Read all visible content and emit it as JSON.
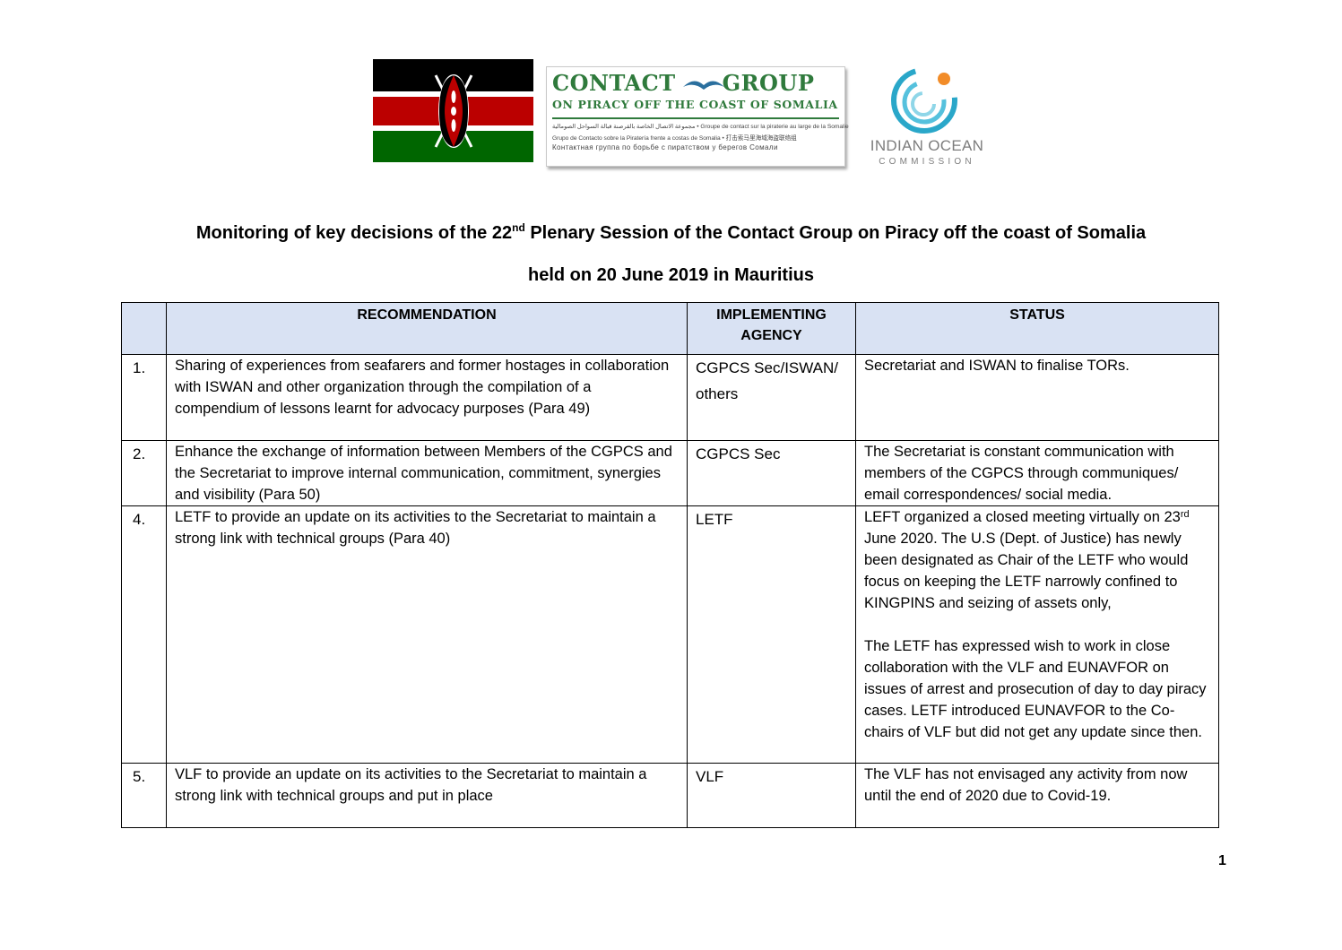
{
  "logos": {
    "contact_group_title_left": "CONTACT",
    "contact_group_title_right": "GROUP",
    "contact_group_subtitle": "ON PIRACY OFF THE COAST OF SOMALIA",
    "contact_group_multilingual": [
      "مجموعة الاتصال الخاصة بالقرصنة قبالة السواحل الصومالية • Groupe de contact sur la piraterie au large de la Somalie",
      "Grupo de Contacto sobre la Piratería frente a costas de Somalia • 打击索马里海域海盗联络组",
      "Контактная группа по борьбе с пиратством у берегов Сомали"
    ],
    "ioc_name": "INDIAN OCEAN",
    "ioc_sub": "COMMISSION"
  },
  "heading": {
    "line1_before": "Monitoring of key decisions of the 22",
    "line1_sup": "nd",
    "line1_after": " Plenary Session of the Contact Group on Piracy off the coast of Somalia",
    "line2": "held on 20 June 2019 in Mauritius"
  },
  "table": {
    "headers": {
      "num": "",
      "recommendation": "RECOMMENDATION",
      "agency_line1": "IMPLEMENTING",
      "agency_line2": "AGENCY",
      "status": "STATUS"
    },
    "rows": [
      {
        "num": "1.",
        "recommendation": "Sharing of experiences from seafarers and former hostages in collaboration with ISWAN and other organization through the compilation of a compendium of lessons learnt for advocacy purposes (Para 49)",
        "agency": "CGPCS Sec/ISWAN/ others",
        "status": "Secretariat and ISWAN to finalise TORs."
      },
      {
        "num": "2.",
        "recommendation": "Enhance the exchange of information between Members of the CGPCS and the Secretariat to improve internal communication, commitment, synergies and visibility (Para 50)",
        "agency": "CGPCS Sec",
        "status": "The Secretariat is constant communication with members of the CGPCS through communiques/ email correspondences/ social media."
      },
      {
        "num": "4.",
        "recommendation": "LETF to provide an update on its activities to the Secretariat to maintain a strong link with technical groups (Para 40)",
        "agency": "LETF",
        "status_p1_a": "LEFT organized a closed meeting virtually on 23",
        "status_p1_sup": "rd",
        "status_p1_b": " June 2020.  The U.S (Dept. of Justice) has newly been designated as Chair of the LETF who would focus on keeping the LETF narrowly confined to KINGPINS and seizing of assets only,",
        "status_p2": "The LETF has expressed wish to work in close collaboration with the VLF and EUNAVFOR on issues of arrest and prosecution of day to day piracy cases. LETF introduced EUNAVFOR to the Co-chairs of VLF but did not get any update since then."
      },
      {
        "num": "5.",
        "recommendation": "VLF to provide an update on its activities to the Secretariat to maintain a strong link with technical groups and put in place",
        "agency": "VLF",
        "status": "The VLF has not envisaged any activity from now until the end of 2020 due to Covid-19."
      }
    ]
  },
  "page_number": "1",
  "colors": {
    "header_fill": "#d9e2f3",
    "cg_green": "#2f7a3c",
    "ioc_cyan": "#2aa7c9",
    "ioc_orange": "#f28c28"
  }
}
